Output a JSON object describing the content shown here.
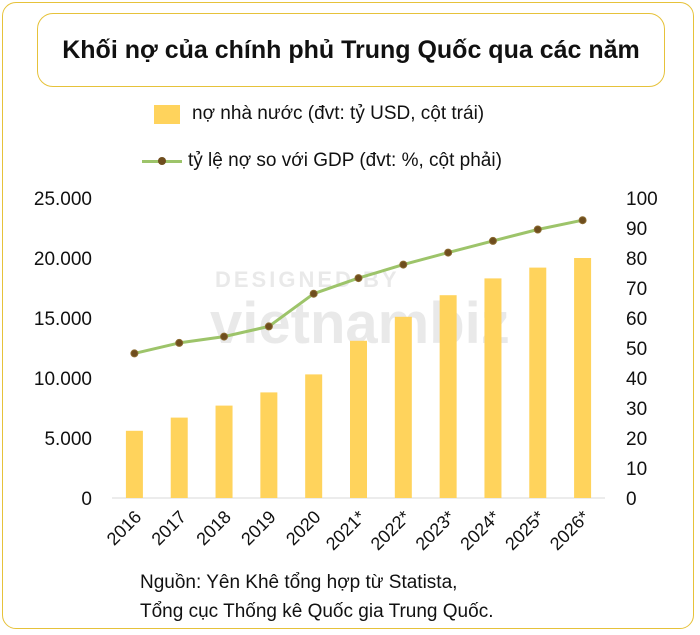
{
  "title": "Khối nợ của chính phủ Trung Quốc qua các năm",
  "watermark": {
    "line1": "DESIGNED BY",
    "line2": "vietnambiz"
  },
  "source": [
    "Nguồn: Yên Khê tổng hợp từ Statista,",
    "Tổng cục Thống kê Quốc gia Trung Quốc."
  ],
  "chart_data": {
    "type": "bar",
    "categories": [
      "2016",
      "2017",
      "2018",
      "2019",
      "2020",
      "2021*",
      "2022*",
      "2023*",
      "2024*",
      "2025*",
      "2026*"
    ],
    "series": [
      {
        "name": "nợ nhà nước (đvt: tỷ USD, cột trái)",
        "type": "bar",
        "axis": "left",
        "color": "#ffd35c",
        "values": [
          5600,
          6700,
          7700,
          8800,
          10300,
          13100,
          15100,
          16900,
          18300,
          19200,
          20000
        ]
      },
      {
        "name": "tỷ lệ nợ so với GDP (đvt: %, cột phải)",
        "type": "line",
        "axis": "right",
        "color": "#9dc46a",
        "marker_color": "#6e4d1e",
        "values": [
          48.2,
          51.7,
          53.8,
          57.2,
          68.1,
          73.3,
          77.8,
          81.8,
          85.7,
          89.5,
          92.6
        ]
      }
    ],
    "y_left": {
      "min": 0,
      "max": 25000,
      "step": 5000,
      "tick_labels": [
        "0",
        "5.000",
        "10.000",
        "15.000",
        "20.000",
        "25.000"
      ]
    },
    "y_right": {
      "min": 0,
      "max": 100,
      "step": 10,
      "tick_labels": [
        "0",
        "10",
        "20",
        "30",
        "40",
        "50",
        "60",
        "70",
        "80",
        "90",
        "100"
      ]
    },
    "grid": false,
    "legend_position": "top"
  }
}
